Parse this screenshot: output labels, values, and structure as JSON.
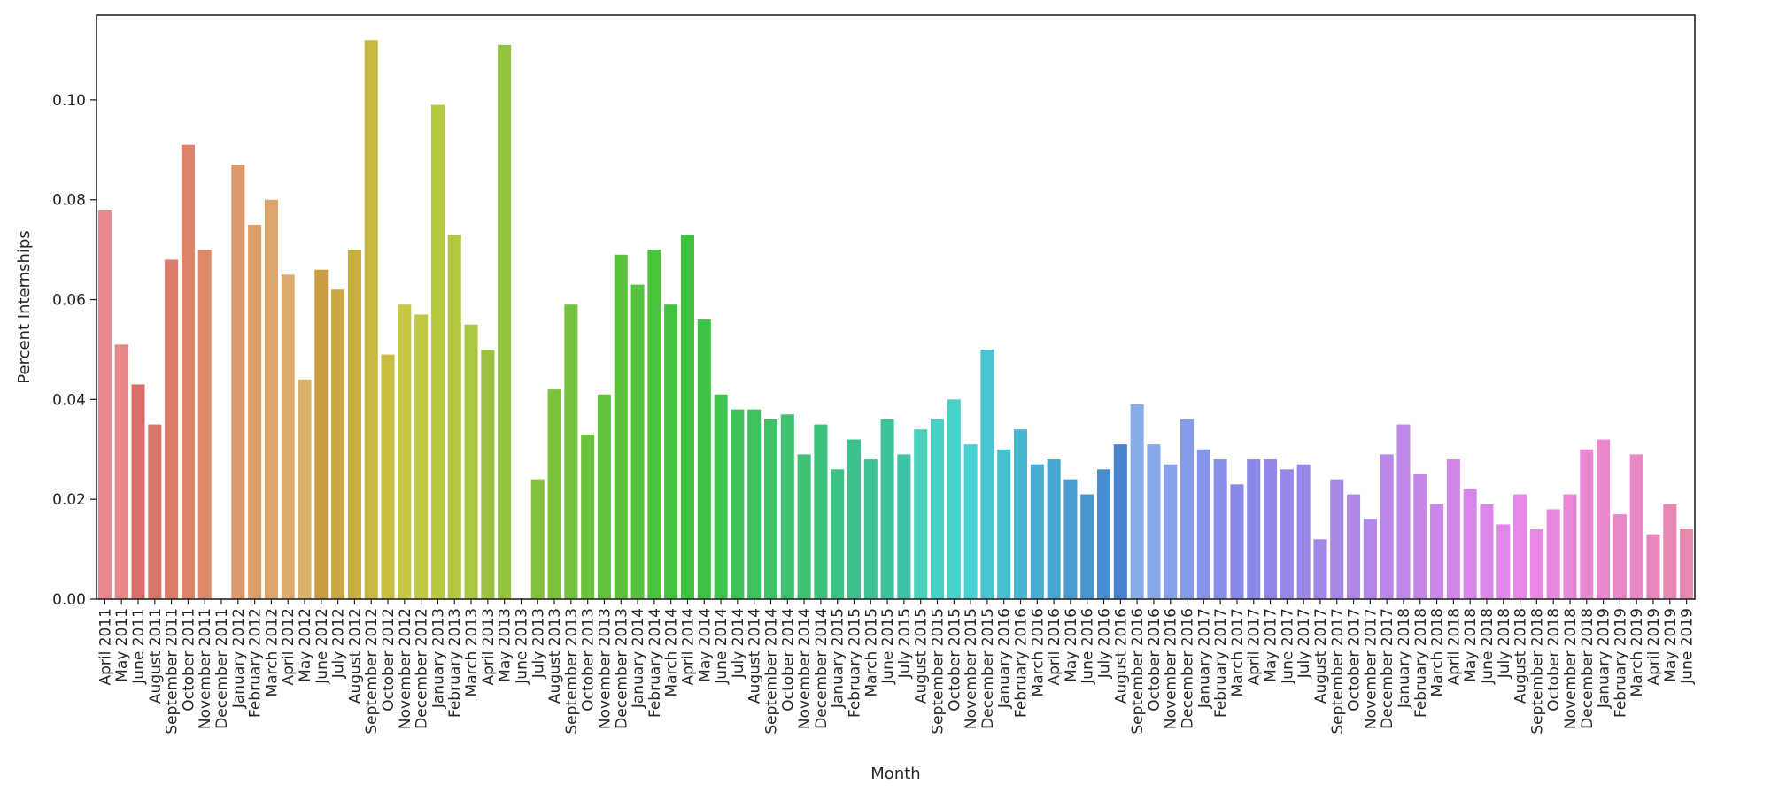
{
  "chart_data": {
    "type": "bar",
    "title": "",
    "xlabel": "Month",
    "ylabel": "Percent Internships",
    "ylim": [
      0,
      0.117
    ],
    "yticks": [
      0.0,
      0.02,
      0.04,
      0.06,
      0.08,
      0.1
    ],
    "ytick_labels": [
      "0.00",
      "0.02",
      "0.04",
      "0.06",
      "0.08",
      "0.10"
    ],
    "grid": false,
    "legend": "none",
    "categories": [
      "April 2011",
      "May 2011",
      "June 2011",
      "August 2011",
      "September 2011",
      "October 2011",
      "November 2011",
      "December 2011",
      "January 2012",
      "February 2012",
      "March 2012",
      "April 2012",
      "May 2012",
      "June 2012",
      "July 2012",
      "August 2012",
      "September 2012",
      "October 2012",
      "November 2012",
      "December 2012",
      "January 2013",
      "February 2013",
      "March 2013",
      "April 2013",
      "May 2013",
      "June 2013",
      "July 2013",
      "August 2013",
      "September 2013",
      "October 2013",
      "November 2013",
      "December 2013",
      "January 2014",
      "February 2014",
      "March 2014",
      "April 2014",
      "May 2014",
      "June 2014",
      "July 2014",
      "August 2014",
      "September 2014",
      "October 2014",
      "November 2014",
      "December 2014",
      "January 2015",
      "February 2015",
      "March 2015",
      "June 2015",
      "July 2015",
      "August 2015",
      "September 2015",
      "October 2015",
      "November 2015",
      "December 2015",
      "January 2016",
      "February 2016",
      "March 2016",
      "April 2016",
      "May 2016",
      "June 2016",
      "July 2016",
      "August 2016",
      "September 2016",
      "October 2016",
      "November 2016",
      "December 2016",
      "January 2017",
      "February 2017",
      "March 2017",
      "April 2017",
      "May 2017",
      "June 2017",
      "July 2017",
      "August 2017",
      "September 2017",
      "October 2017",
      "November 2017",
      "December 2017",
      "January 2018",
      "February 2018",
      "March 2018",
      "April 2018",
      "May 2018",
      "June 2018",
      "July 2018",
      "August 2018",
      "September 2018",
      "October 2018",
      "November 2018",
      "December 2018",
      "January 2019",
      "February 2019",
      "March 2019",
      "April 2019",
      "May 2019",
      "June 2019"
    ],
    "values": [
      0.078,
      0.051,
      0.043,
      0.035,
      0.068,
      0.091,
      0.07,
      0.0,
      0.087,
      0.075,
      0.08,
      0.065,
      0.044,
      0.066,
      0.062,
      0.07,
      0.112,
      0.049,
      0.059,
      0.057,
      0.099,
      0.073,
      0.055,
      0.05,
      0.111,
      0.0,
      0.024,
      0.042,
      0.059,
      0.033,
      0.041,
      0.069,
      0.063,
      0.07,
      0.059,
      0.073,
      0.056,
      0.041,
      0.038,
      0.038,
      0.036,
      0.037,
      0.029,
      0.035,
      0.026,
      0.032,
      0.028,
      0.036,
      0.029,
      0.034,
      0.036,
      0.04,
      0.031,
      0.05,
      0.03,
      0.034,
      0.027,
      0.028,
      0.024,
      0.021,
      0.026,
      0.031,
      0.039,
      0.031,
      0.027,
      0.036,
      0.03,
      0.028,
      0.023,
      0.028,
      0.028,
      0.026,
      0.027,
      0.012,
      0.024,
      0.021,
      0.016,
      0.029,
      0.035,
      0.025,
      0.019,
      0.028,
      0.022,
      0.019,
      0.015,
      0.021,
      0.014,
      0.018,
      0.021,
      0.03,
      0.032,
      0.017,
      0.029,
      0.013,
      0.019,
      0.014
    ]
  }
}
